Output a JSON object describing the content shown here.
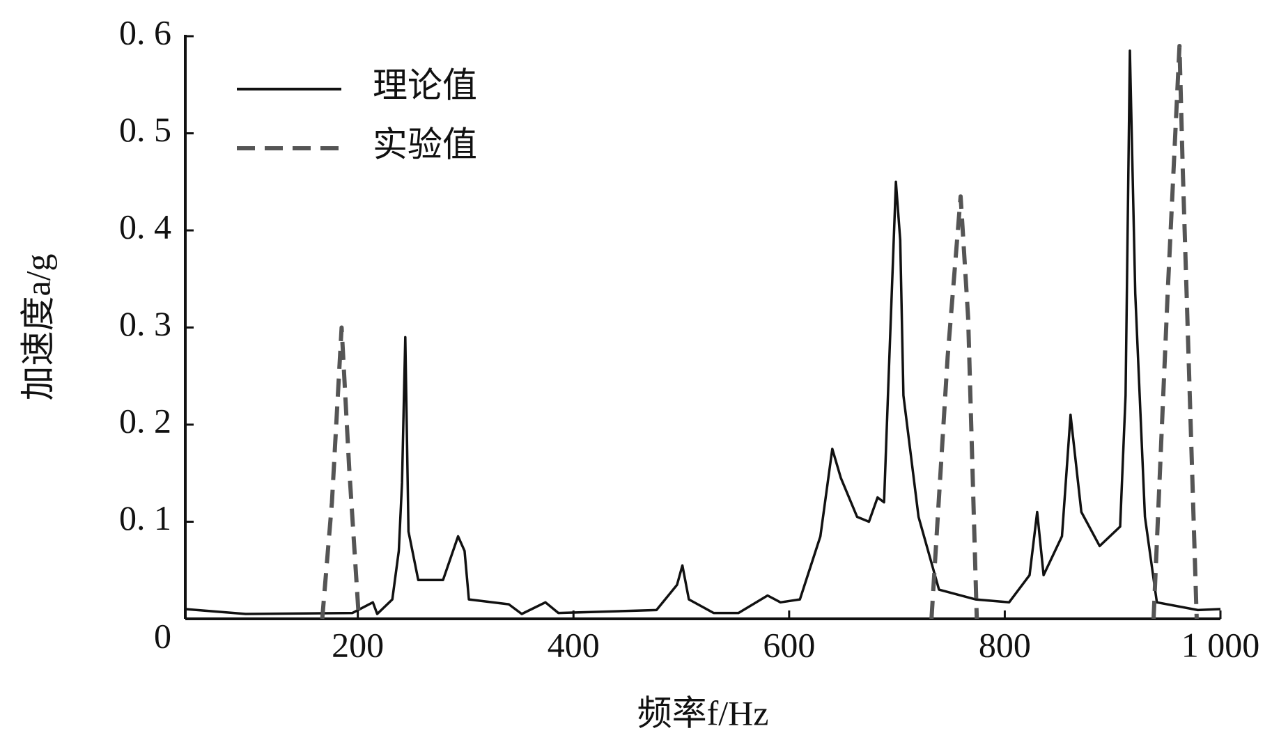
{
  "chart_data": {
    "type": "line",
    "x_label": "频率f/Hz",
    "y_label": "加速度a/g",
    "xlim": [
      40,
      1000
    ],
    "ylim": [
      0,
      0.6
    ],
    "xticks": [
      200,
      400,
      600,
      800,
      {
        "value": 1000,
        "label": "1 000"
      }
    ],
    "yticks": [
      0,
      {
        "value": 0.1,
        "label": "0. 1"
      },
      {
        "value": 0.2,
        "label": "0. 2"
      },
      {
        "value": 0.3,
        "label": "0. 3"
      },
      {
        "value": 0.4,
        "label": "0. 4"
      },
      {
        "value": 0.5,
        "label": "0. 5"
      },
      {
        "value": 0.6,
        "label": "0. 6"
      }
    ],
    "legend": "upper left",
    "series": [
      {
        "name": "理论值",
        "color": "#111111",
        "dash": false,
        "x": [
          40,
          96,
          195,
          214,
          218,
          232,
          238,
          241,
          244,
          247,
          256,
          279,
          293,
          299,
          303,
          340,
          352,
          374,
          386,
          477,
          496,
          501,
          507,
          530,
          553,
          580,
          592,
          610,
          629,
          640,
          648,
          663,
          674,
          682,
          688,
          692,
          699,
          703,
          706,
          720,
          739,
          773,
          804,
          823,
          830,
          836,
          853,
          861,
          871,
          888,
          907,
          912,
          916,
          921,
          930,
          941,
          979,
          1000
        ],
        "values": [
          0.01,
          0.005,
          0.006,
          0.017,
          0.005,
          0.02,
          0.07,
          0.14,
          0.29,
          0.09,
          0.04,
          0.04,
          0.085,
          0.07,
          0.02,
          0.015,
          0.005,
          0.017,
          0.006,
          0.009,
          0.035,
          0.055,
          0.02,
          0.006,
          0.006,
          0.024,
          0.017,
          0.02,
          0.085,
          0.175,
          0.145,
          0.105,
          0.1,
          0.125,
          0.12,
          0.24,
          0.45,
          0.39,
          0.23,
          0.105,
          0.03,
          0.02,
          0.017,
          0.045,
          0.11,
          0.045,
          0.085,
          0.21,
          0.11,
          0.075,
          0.095,
          0.23,
          0.585,
          0.335,
          0.105,
          0.017,
          0.009,
          0.01
        ]
      },
      {
        "name": "实验值",
        "color": "#555555",
        "dash": true,
        "x": [
          167,
          176,
          185,
          192,
          201,
          null,
          732,
          747,
          759,
          766,
          774,
          null,
          938,
          951,
          962,
          965,
          978
        ],
        "values": [
          0,
          0.12,
          0.3,
          0.155,
          0,
          null,
          0,
          0.27,
          0.435,
          0.31,
          0,
          null,
          0,
          0.335,
          0.59,
          0.465,
          0
        ]
      }
    ]
  }
}
